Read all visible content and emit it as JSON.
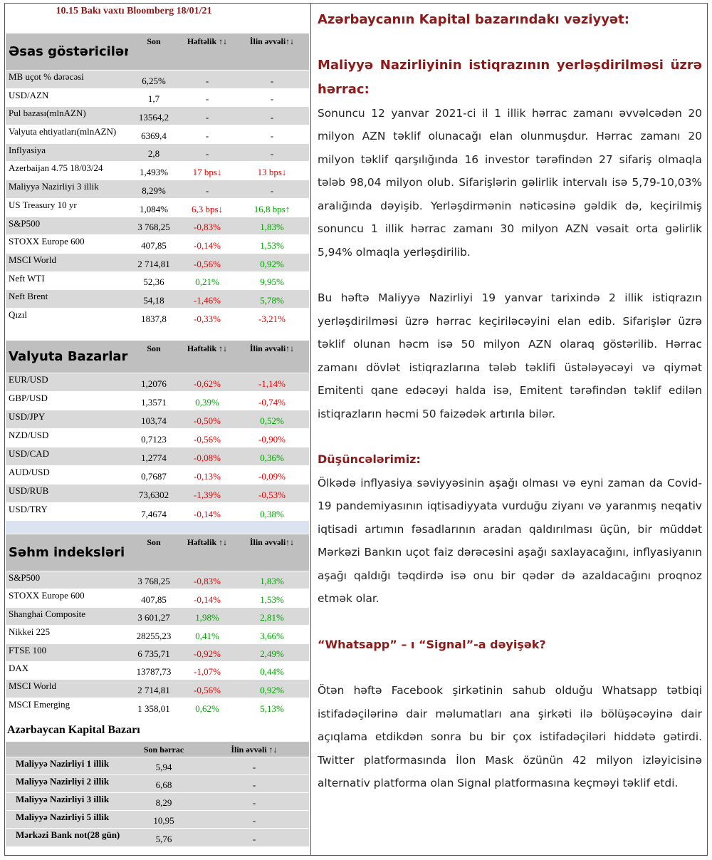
{
  "header": "10.15 Bakı vaxtı Bloomberg 18/01/21",
  "tables": [
    {
      "title": "Əsas göstəricilər",
      "columns": [
        "Son",
        "Həftəlik ↑↓",
        "İlin əvvəli↑↓"
      ],
      "rows": [
        [
          "MB uçot % dərəcəsi",
          "6,25%",
          "-",
          "-"
        ],
        [
          "USD/AZN",
          "1,7",
          "-",
          "-"
        ],
        [
          "Pul bazası(mlnAZN)",
          "13564,2",
          "-",
          "-"
        ],
        [
          "Valyuta ehtiyatları(mlnAZN)",
          "6369,4",
          "-",
          "-"
        ],
        [
          "Inflyasiya",
          "2,8",
          "-",
          "-"
        ],
        [
          "Azerbaijan 4.75 18/03/24",
          "1,493%",
          "17 bps↓",
          "13 bps↓"
        ],
        [
          "Maliyyə Nazirliyi 3 illik",
          "8,29%",
          "-",
          "-"
        ],
        [
          "US Treasury 10 yr",
          "1,084%",
          "6,3 bps↓",
          "16,8 bps↑"
        ],
        [
          "S&P500",
          "3 768,25",
          "-0,83%",
          "1,83%"
        ],
        [
          "STOXX Europe 600",
          "407,85",
          "-0,14%",
          "1,53%"
        ],
        [
          "MSCI World",
          "2 714,81",
          "-0,56%",
          "0,92%"
        ],
        [
          "Neft WTI",
          "52,36",
          "0,21%",
          "9,95%"
        ],
        [
          "Neft Brent",
          "54,18",
          "-1,46%",
          "5,78%"
        ],
        [
          "Qızıl",
          "1837,8",
          "-0,33%",
          "-3,21%"
        ]
      ]
    },
    {
      "title": "Valyuta Bazarları",
      "columns": [
        "Son",
        "Həftəlik ↑↓",
        "İlin əvvəli↑↓"
      ],
      "rows": [
        [
          "EUR/USD",
          "1,2076",
          "-0,62%",
          "-1,14%"
        ],
        [
          "GBP/USD",
          "1,3571",
          "0,39%",
          "-0,74%"
        ],
        [
          "USD/JPY",
          "103,74",
          "-0,50%",
          "0,52%"
        ],
        [
          "NZD/USD",
          "0,7123",
          "-0,56%",
          "-0,90%"
        ],
        [
          "USD/CAD",
          "1,2774",
          "-0,08%",
          "0,36%"
        ],
        [
          "AUD/USD",
          "0,7687",
          "-0,13%",
          "-0,09%"
        ],
        [
          "USD/RUB",
          "73,6302",
          "-1,39%",
          "-0,53%"
        ],
        [
          "USD/TRY",
          "7,4674",
          "-0,14%",
          "0,38%"
        ]
      ]
    },
    {
      "title": "Səhm indeksləri",
      "columns": [
        "Son",
        "Həftəlik ↑↓",
        "İlin əvvəli↑↓"
      ],
      "rows": [
        [
          "S&P500",
          "3 768,25",
          "-0,83%",
          "1,83%"
        ],
        [
          "STOXX Europe 600",
          "407,85",
          "-0,14%",
          "1,53%"
        ],
        [
          "Shanghai Composite",
          "3 601,27",
          "1,98%",
          "2,81%"
        ],
        [
          "Nikkei 225",
          "28255,23",
          "0,41%",
          "3,66%"
        ],
        [
          "FTSE 100",
          "6 735,71",
          "-0,92%",
          "2,49%"
        ],
        [
          "DAX",
          "13787,73",
          "-1,07%",
          "0,44%"
        ],
        [
          "MSCI World",
          "2 714,81",
          "-0,56%",
          "0,92%"
        ],
        [
          "MSCI Emerging",
          "1 358,01",
          "0,62%",
          "5,13%"
        ]
      ]
    },
    {
      "title": "Azərbaycan Kapital Bazarı",
      "columns": [
        "Son hərrac",
        "İlin əvvəli ↑↓"
      ],
      "rows": [
        [
          "Maliyyə Nazirliyi 1 illik",
          "5,94",
          "-"
        ],
        [
          "Maliyyə Nazirliyi 2 illik",
          "6,68",
          "-"
        ],
        [
          "Maliyyə Nazirliyi 3 illik",
          "8,29",
          "-"
        ],
        [
          "Maliyyə Nazirliyi 5 illik",
          "10,95",
          "-"
        ],
        [
          "Mərkəzi Bank not(28 gün)",
          "5,76",
          "-"
        ]
      ]
    }
  ],
  "article": {
    "heading": "Azərbaycanın Kapital bazarındakı vəziyyət:",
    "sections": [
      {
        "title": "Maliyyə Nazirliyinin istiqrazının yerləşdirilməsi üzrə hərrac:",
        "paragraphs": [
          "Sonuncu 12 yanvar 2021-ci il 1 illik hərrac zamanı əvvəlcədən 20 milyon AZN  təklif olunacağı elan olunmuşdur. Hərrac zamanı 20 milyon təklif qarşılığında 16 investor tərəfindən 27 sifariş olmaqla tələb 98,04 milyon olub. Sifarişlərin gəlirlik intervalı isə 5,79-10,03% aralığında dəyişib. Yerləşdirmənin nəticəsinə gəldik də, keçirilmiş sonuncu 1 illik hərrac zamanı 30 milyon AZN vəsait orta gəlirlik 5,94% olmaqla yerləşdirilib.",
          "Bu həftə Maliyyə Nazirliyi 19 yanvar tarixində 2 illik istiqrazın yerləşdirilməsi üzrə hərrac keçiriləcəyini elan edib. Sifarişlər üzrə təklif olunan həcm isə 50 milyon AZN olaraq göstərilib. Hərrac zamanı dövlət istiqrazlarına tələb təklifi üstələyəcəyi və qiymət Emitenti qane edəcəyi halda isə, Emitent tərəfindən təklif edilən istiqrazların həcmi 50 faizədək artırıla bilər."
        ]
      },
      {
        "title": "Düşüncələrimiz:",
        "paragraphs": [
          "Ölkədə inflyasiya səviyyəsinin aşağı olması və eyni zaman da Covid-19 pandemiyasının iqtisadiyyata vurduğu ziyanı və yaranmış neqativ iqtisadi artımın fəsadlarının aradan qaldırılması üçün, bir müddət Mərkəzi Bankın uçot faiz dərəcəsini aşağı saxlayacağını, inflyasiyanın aşağı qaldığı təqdirdə isə onu bir qədər də azaldacağını proqnoz etmək olar."
        ]
      },
      {
        "title": "“Whatsapp” – ı  “Signal”-a dəyişək?",
        "paragraphs": [
          "Ötən həftə Facebook şirkətinin sahub olduğu Whatsapp tətbiqi istifadəçilərinə dair məlumatları ana şirkəti ilə bölüşəcəyinə dair açıqlama etdikdən sonra bu bir çox istifadəçiləri hiddətə gətirdi. Twitter platformasında İlon Mask özünün 42 milyon izləyicisinə alternativ platforma olan Signal platformasına keçməyi təklif etdi."
        ]
      }
    ]
  }
}
